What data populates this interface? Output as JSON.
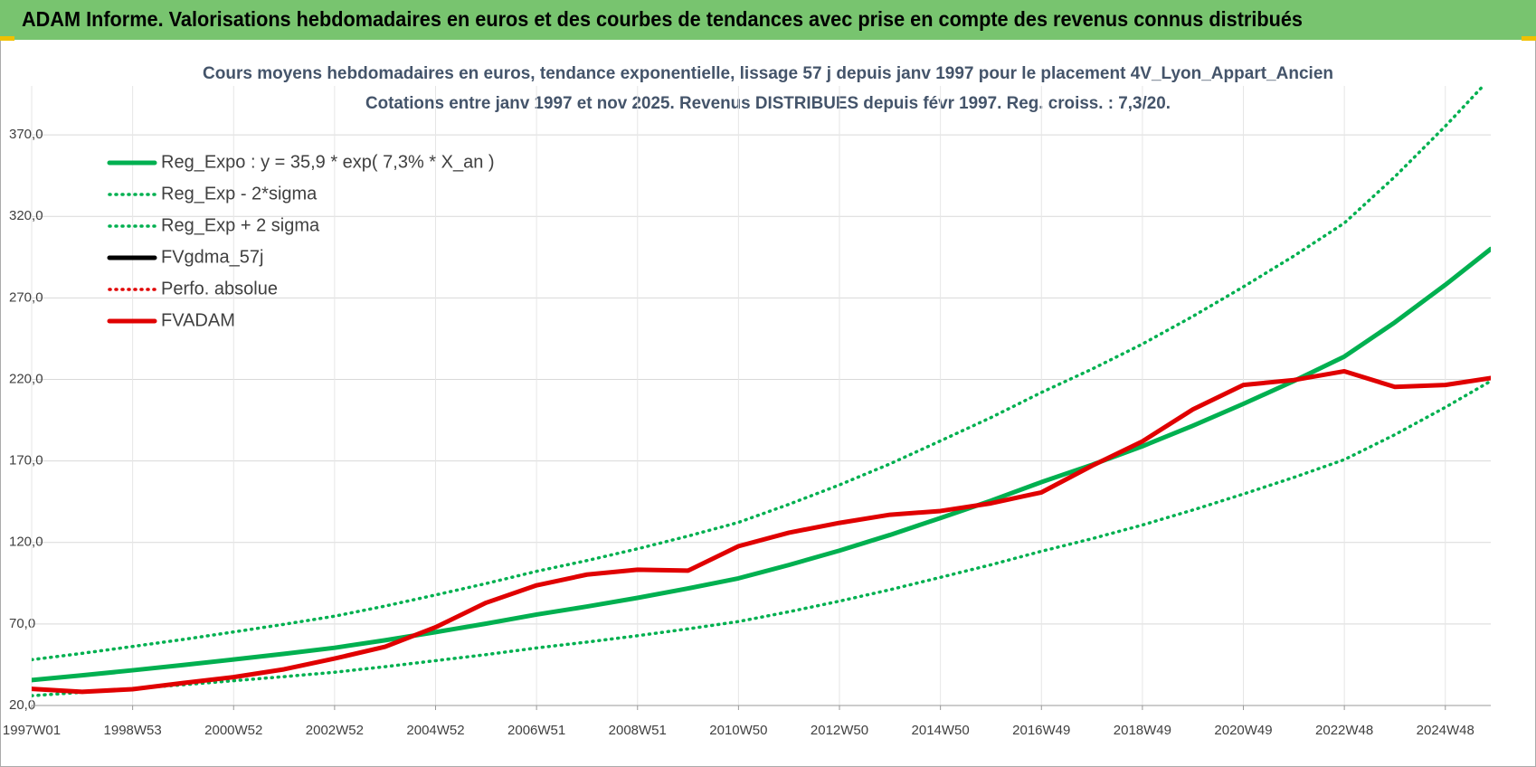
{
  "header": "ADAM Informe. Valorisations hebdomadaires en euros et des courbes de tendances avec prise en compte des revenus connus distribués",
  "chart_data": {
    "type": "line",
    "title": "Cours moyens hebdomadaires en euros, tendance exponentielle, lissage 57 j depuis janv 1997  pour le placement 4V_Lyon_Appart_Ancien",
    "subtitle": "Cotations entre janv 1997 et nov 2025. Revenus DISTRIBUES depuis févr 1997. Reg. croiss. : 7,3/20.",
    "x": [
      1997,
      1998,
      1999,
      2000,
      2001,
      2002,
      2003,
      2004,
      2005,
      2006,
      2007,
      2008,
      2009,
      2010,
      2011,
      2012,
      2013,
      2014,
      2015,
      2016,
      2017,
      2018,
      2019,
      2020,
      2021,
      2022,
      2023,
      2024,
      2025,
      2025.9
    ],
    "xlim": [
      1997,
      2025.9
    ],
    "xticks": [
      {
        "value": 1997,
        "label": "1997W01"
      },
      {
        "value": 1999,
        "label": "1998W53"
      },
      {
        "value": 2001,
        "label": "2000W52"
      },
      {
        "value": 2003,
        "label": "2002W52"
      },
      {
        "value": 2005,
        "label": "2004W52"
      },
      {
        "value": 2007,
        "label": "2006W51"
      },
      {
        "value": 2009,
        "label": "2008W51"
      },
      {
        "value": 2011,
        "label": "2010W50"
      },
      {
        "value": 2013,
        "label": "2012W50"
      },
      {
        "value": 2015,
        "label": "2014W50"
      },
      {
        "value": 2017,
        "label": "2016W49"
      },
      {
        "value": 2019,
        "label": "2018W49"
      },
      {
        "value": 2021,
        "label": "2020W49"
      },
      {
        "value": 2023,
        "label": "2022W48"
      },
      {
        "value": 2025,
        "label": "2024W48"
      }
    ],
    "ylim": [
      20,
      400
    ],
    "yticks": [
      {
        "value": 20,
        "label": "20,0"
      },
      {
        "value": 70,
        "label": "70,0"
      },
      {
        "value": 120,
        "label": "120,0"
      },
      {
        "value": 170,
        "label": "170,0"
      },
      {
        "value": 220,
        "label": "220,0"
      },
      {
        "value": 270,
        "label": "270,0"
      },
      {
        "value": 320,
        "label": "320,0"
      },
      {
        "value": 370,
        "label": "370,0"
      }
    ],
    "grid": true,
    "legend": "upper left",
    "series": [
      {
        "name": "Reg_Expo : y = 35,9 * exp( 7,3% *  X_an )",
        "color": "#00b050",
        "style": "solid",
        "values": [
          35.6,
          38.5,
          41.6,
          44.8,
          48.2,
          51.7,
          55.4,
          60,
          65,
          70.2,
          75.8,
          80.7,
          86,
          91.8,
          98,
          106.2,
          115,
          124.6,
          135,
          145.6,
          157,
          167.6,
          179,
          191.6,
          205,
          219,
          234,
          255,
          278,
          300
        ]
      },
      {
        "name": "Reg_Exp - 2*sigma",
        "color": "#00b050",
        "style": "dotted",
        "values": [
          26.0,
          28.1,
          30.4,
          32.7,
          35.2,
          37.7,
          40.4,
          43.8,
          47.5,
          51.2,
          55.3,
          58.9,
          62.8,
          67.0,
          71.5,
          77.5,
          84.0,
          91.0,
          98.6,
          106.3,
          114.6,
          122.3,
          130.7,
          139.9,
          149.7,
          159.9,
          170.8,
          186.1,
          202.9,
          219.0
        ]
      },
      {
        "name": "Reg_Exp + 2 sigma",
        "color": "#00b050",
        "style": "dotted",
        "values": [
          48.1,
          52.0,
          56.2,
          60.5,
          65.1,
          69.8,
          74.8,
          81.0,
          87.8,
          94.8,
          102.3,
          108.9,
          116.1,
          123.9,
          132.3,
          143.4,
          155.3,
          168.2,
          182.3,
          196.6,
          212.0,
          226.3,
          241.7,
          258.7,
          276.8,
          295.7,
          315.9,
          344.3,
          375.3,
          405.0
        ]
      },
      {
        "name": "FVgdma_57j",
        "color": "#000000",
        "style": "solid"
      },
      {
        "name": "Perfo. absolue",
        "color": "#e00000",
        "style": "dotted"
      },
      {
        "name": "FVADAM",
        "color": "#e00000",
        "style": "solid",
        "values": [
          30.2,
          28.4,
          30,
          33.8,
          37.4,
          42.2,
          48.8,
          56,
          68,
          83,
          93.7,
          100.3,
          103.3,
          102.7,
          117.7,
          126,
          132,
          137,
          139.3,
          144,
          150.7,
          167,
          182,
          201.6,
          216.6,
          219.6,
          225,
          215.4,
          216.6,
          220.8
        ]
      }
    ]
  }
}
